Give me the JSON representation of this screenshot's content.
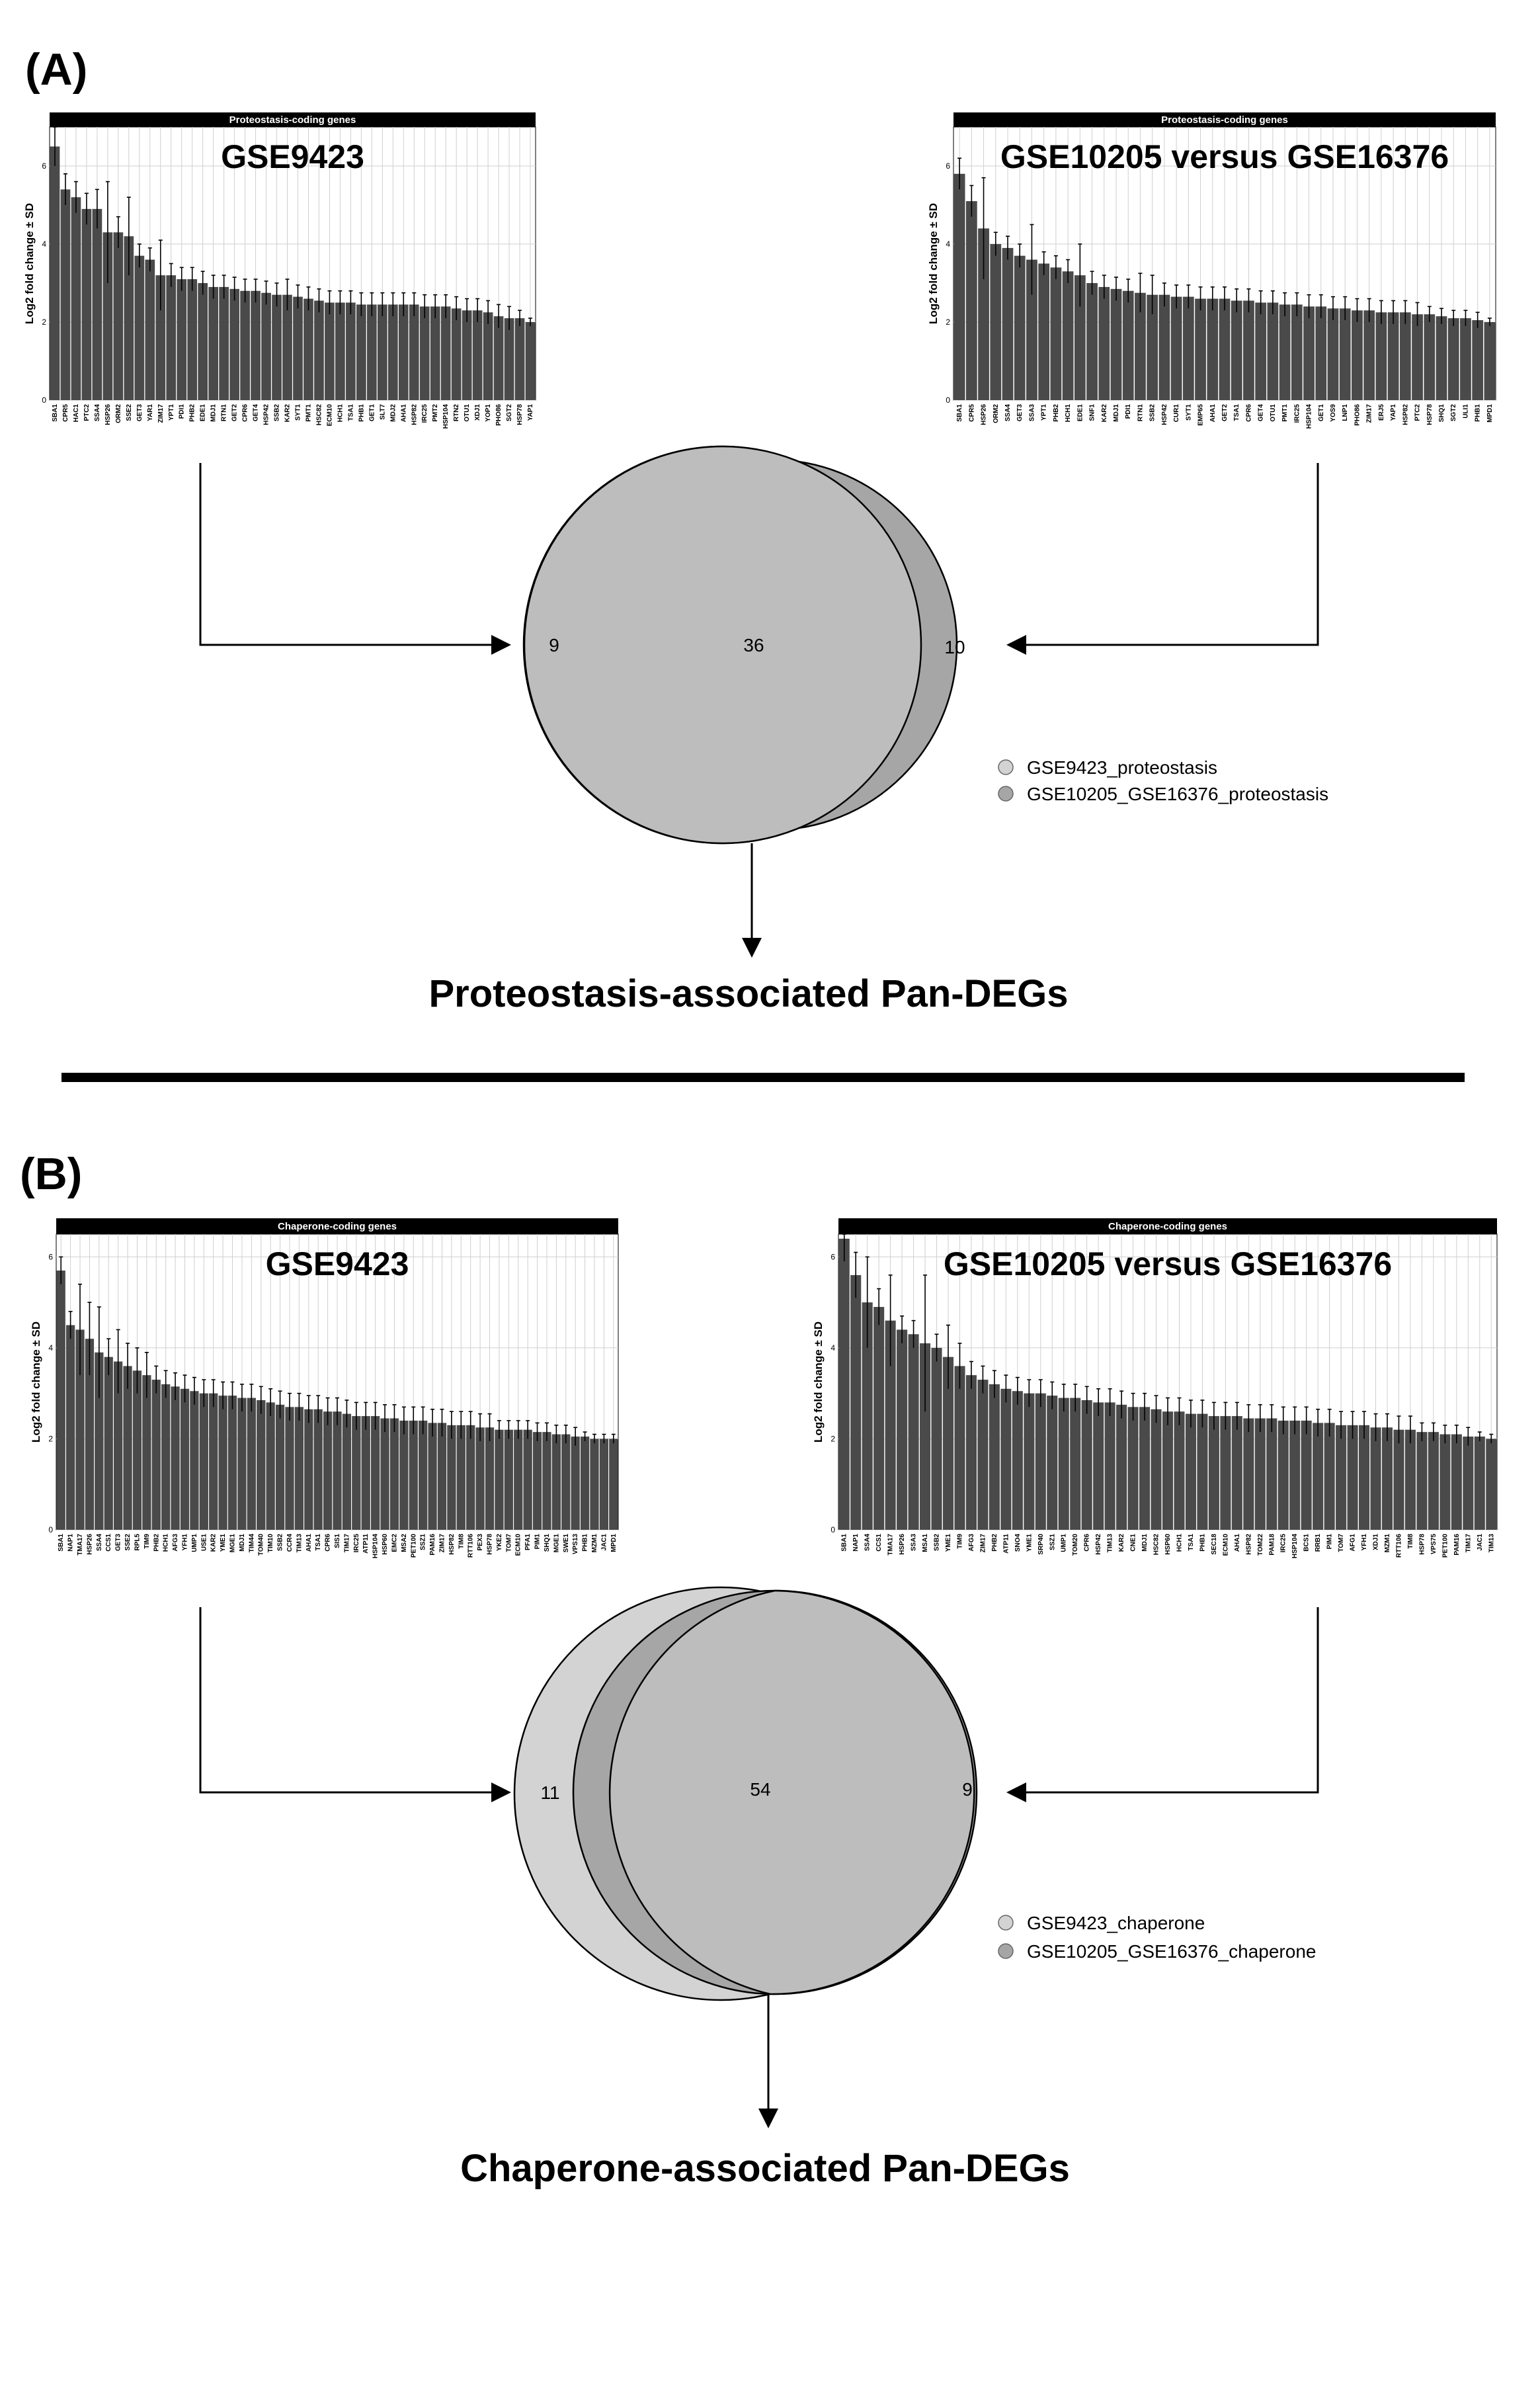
{
  "colors": {
    "bar": "#4a4a4a",
    "strip": "#000000",
    "grid": "#cfcfcf",
    "venn_left": "#d3d3d3",
    "venn_right": "#a6a6a6",
    "venn_overlap": "#bdbdbd"
  },
  "panels": [
    {
      "label": "(A)",
      "caption": "Proteostasis-associated Pan-DEGs",
      "venn": {
        "left_only": "9",
        "both": "36",
        "right_only": "10"
      },
      "legend": [
        "GSE9423_proteostasis",
        "GSE10205_GSE16376_proteostasis"
      ]
    },
    {
      "label": "(B)",
      "caption": "Chaperone-associated Pan-DEGs",
      "venn": {
        "left_only": "11",
        "both": "54",
        "right_only": "9"
      },
      "legend": [
        "GSE9423_chaperone",
        "GSE10205_GSE16376_chaperone"
      ]
    }
  ],
  "chart_data": [
    {
      "type": "bar",
      "strip": "Proteostasis-coding genes",
      "title": "GSE9423",
      "ylabel": "Log2 fold change ± SD",
      "ylim": [
        0,
        7
      ],
      "yticks": [
        "0",
        "2",
        "4",
        "6"
      ],
      "grid": true,
      "categories": [
        "SBA1",
        "CPR5",
        "HAC1",
        "PTC2",
        "SSA4",
        "HSP26",
        "ORM2",
        "SSE2",
        "GET3",
        "YAR1",
        "ZIM17",
        "YPT1",
        "PDI1",
        "PHB2",
        "EDE1",
        "MDJ1",
        "RTN1",
        "GET2",
        "CPR6",
        "GET4",
        "HSP42",
        "SSB2",
        "KAR2",
        "SYT1",
        "PMT1",
        "HSC82",
        "ECM10",
        "HCH1",
        "TSA1",
        "PHB1",
        "GET1",
        "SLT7",
        "MDJ2",
        "AHA1",
        "HSP82",
        "IRC25",
        "PMT2",
        "HSP104",
        "RTN2",
        "OTU1",
        "XDJ1",
        "YOP1",
        "PHO86",
        "SGT2",
        "HSP78",
        "YAP1"
      ],
      "values": [
        6.5,
        5.4,
        5.2,
        4.9,
        4.9,
        4.3,
        4.3,
        4.2,
        3.7,
        3.6,
        3.2,
        3.2,
        3.1,
        3.1,
        3.0,
        2.9,
        2.9,
        2.85,
        2.8,
        2.8,
        2.75,
        2.7,
        2.7,
        2.65,
        2.6,
        2.55,
        2.5,
        2.5,
        2.5,
        2.45,
        2.45,
        2.45,
        2.45,
        2.45,
        2.45,
        2.4,
        2.4,
        2.4,
        2.35,
        2.3,
        2.3,
        2.25,
        2.15,
        2.1,
        2.1,
        2.0
      ],
      "errors": [
        0.5,
        0.4,
        0.4,
        0.4,
        0.5,
        1.3,
        0.4,
        1.0,
        0.3,
        0.3,
        0.9,
        0.3,
        0.3,
        0.3,
        0.3,
        0.3,
        0.3,
        0.3,
        0.3,
        0.3,
        0.3,
        0.3,
        0.4,
        0.3,
        0.3,
        0.3,
        0.3,
        0.3,
        0.3,
        0.3,
        0.3,
        0.3,
        0.3,
        0.3,
        0.3,
        0.3,
        0.3,
        0.3,
        0.3,
        0.3,
        0.3,
        0.3,
        0.3,
        0.3,
        0.2,
        0.1
      ]
    },
    {
      "type": "bar",
      "strip": "Proteostasis-coding genes",
      "title": "GSE10205 versus GSE16376",
      "ylabel": "Log2 fold change ± SD",
      "ylim": [
        0,
        7
      ],
      "yticks": [
        "0",
        "2",
        "4",
        "6"
      ],
      "grid": true,
      "categories": [
        "SBA1",
        "CPR5",
        "HSP26",
        "ORM2",
        "SSA4",
        "GET3",
        "SSA3",
        "YPT1",
        "PHB2",
        "HCH1",
        "EDE1",
        "SNF1",
        "KAR2",
        "MDJ1",
        "PDI1",
        "RTN1",
        "SSB2",
        "HSP42",
        "CUR1",
        "SYT1",
        "EMP65",
        "AHA1",
        "GET2",
        "TSA1",
        "CPR6",
        "GET4",
        "OTU1",
        "PMT1",
        "IRC25",
        "HSP104",
        "GET1",
        "YOS9",
        "LNP1",
        "PHO86",
        "ZIM17",
        "ERJ5",
        "YAP1",
        "HSP82",
        "PTC2",
        "HSP78",
        "SHQ1",
        "SGT2",
        "ULI1",
        "PHB1",
        "MPD1"
      ],
      "values": [
        5.8,
        5.1,
        4.4,
        4.0,
        3.9,
        3.7,
        3.6,
        3.5,
        3.4,
        3.3,
        3.2,
        3.0,
        2.9,
        2.85,
        2.8,
        2.75,
        2.7,
        2.7,
        2.65,
        2.65,
        2.6,
        2.6,
        2.6,
        2.55,
        2.55,
        2.5,
        2.5,
        2.45,
        2.45,
        2.4,
        2.4,
        2.35,
        2.35,
        2.3,
        2.3,
        2.25,
        2.25,
        2.25,
        2.2,
        2.2,
        2.15,
        2.1,
        2.1,
        2.05,
        2.0
      ],
      "errors": [
        0.4,
        0.4,
        1.3,
        0.3,
        0.3,
        0.3,
        0.9,
        0.3,
        0.3,
        0.3,
        0.8,
        0.3,
        0.3,
        0.3,
        0.3,
        0.5,
        0.5,
        0.3,
        0.3,
        0.3,
        0.3,
        0.3,
        0.3,
        0.3,
        0.3,
        0.3,
        0.3,
        0.3,
        0.3,
        0.3,
        0.3,
        0.3,
        0.3,
        0.3,
        0.3,
        0.3,
        0.3,
        0.3,
        0.3,
        0.2,
        0.2,
        0.2,
        0.2,
        0.2,
        0.1
      ]
    },
    {
      "type": "bar",
      "strip": "Chaperone-coding genes",
      "title": "GSE9423",
      "ylabel": "Log2 fold change ± SD",
      "ylim": [
        0,
        6.5
      ],
      "yticks": [
        "0",
        "2",
        "4",
        "6"
      ],
      "grid": true,
      "categories": [
        "SBA1",
        "NAP1",
        "TMA17",
        "HSP26",
        "SSA4",
        "CCS1",
        "GET3",
        "SSE2",
        "RPL5",
        "TIM9",
        "PHB2",
        "HCH1",
        "AFG3",
        "YFH1",
        "UMP1",
        "USE1",
        "KAR2",
        "YME1",
        "MGE1",
        "MDJ1",
        "TIM44",
        "TOM40",
        "TIM10",
        "SSB2",
        "CCR4",
        "TIM13",
        "AHA1",
        "TSA1",
        "CPR6",
        "SIS1",
        "TIM17",
        "IRC25",
        "ATP11",
        "HSP104",
        "HSP60",
        "EMC2",
        "MSA2",
        "PET100",
        "SSZ1",
        "PAM16",
        "ZIM17",
        "HSP82",
        "TIM8",
        "RTT106",
        "PEX3",
        "HSP78",
        "YKE2",
        "TOM7",
        "ECM10",
        "PFA1",
        "PIM1",
        "SHQ1",
        "MGE1",
        "SWE1",
        "VPS13",
        "PHB1",
        "MZM1",
        "JAC1",
        "MPD1"
      ],
      "values": [
        5.7,
        4.5,
        4.4,
        4.2,
        3.9,
        3.8,
        3.7,
        3.6,
        3.5,
        3.4,
        3.3,
        3.2,
        3.15,
        3.1,
        3.05,
        3.0,
        3.0,
        2.95,
        2.95,
        2.9,
        2.9,
        2.85,
        2.8,
        2.75,
        2.7,
        2.7,
        2.65,
        2.65,
        2.6,
        2.6,
        2.55,
        2.5,
        2.5,
        2.5,
        2.45,
        2.45,
        2.4,
        2.4,
        2.4,
        2.35,
        2.35,
        2.3,
        2.3,
        2.3,
        2.25,
        2.25,
        2.2,
        2.2,
        2.2,
        2.2,
        2.15,
        2.15,
        2.1,
        2.1,
        2.05,
        2.05,
        2.0,
        2.0,
        2.0
      ],
      "errors": [
        0.3,
        0.3,
        1.0,
        0.8,
        1.0,
        0.4,
        0.7,
        0.5,
        0.5,
        0.5,
        0.3,
        0.3,
        0.3,
        0.3,
        0.3,
        0.3,
        0.3,
        0.3,
        0.3,
        0.3,
        0.3,
        0.3,
        0.3,
        0.3,
        0.3,
        0.3,
        0.3,
        0.3,
        0.3,
        0.3,
        0.3,
        0.3,
        0.3,
        0.3,
        0.3,
        0.3,
        0.3,
        0.3,
        0.3,
        0.3,
        0.3,
        0.3,
        0.3,
        0.3,
        0.3,
        0.3,
        0.2,
        0.2,
        0.2,
        0.2,
        0.2,
        0.2,
        0.2,
        0.2,
        0.2,
        0.1,
        0.1,
        0.1,
        0.1
      ]
    },
    {
      "type": "bar",
      "strip": "Chaperone-coding genes",
      "title": "GSE10205 versus GSE16376",
      "ylabel": "Log2 fold change ± SD",
      "ylim": [
        0,
        6.5
      ],
      "yticks": [
        "0",
        "2",
        "4",
        "6"
      ],
      "grid": true,
      "categories": [
        "SBA1",
        "NAP1",
        "SSA4",
        "CCS1",
        "TMA17",
        "HSP26",
        "SSA3",
        "MSA1",
        "SSB2",
        "YME1",
        "TIM9",
        "AFG3",
        "ZIM17",
        "PHB2",
        "ATP11",
        "SNO4",
        "YME1",
        "SRP40",
        "SSZ1",
        "UMP1",
        "TOM20",
        "CPR6",
        "HSP42",
        "TIM13",
        "KAR2",
        "CNE1",
        "MDJ1",
        "HSC82",
        "HSP60",
        "HCH1",
        "TSA1",
        "PHB1",
        "SEC18",
        "ECM10",
        "AHA1",
        "HSP82",
        "TOM22",
        "PAM18",
        "IRC25",
        "HSP104",
        "BCS1",
        "RRB1",
        "PIM1",
        "TOM7",
        "AFG1",
        "YFH1",
        "XDJ1",
        "MZM1",
        "RTT106",
        "TIM8",
        "HSP78",
        "VPS75",
        "PET100",
        "PAM16",
        "TIM17",
        "JAC1",
        "TIM13"
      ],
      "values": [
        6.4,
        5.6,
        5.0,
        4.9,
        4.6,
        4.4,
        4.3,
        4.1,
        4.0,
        3.8,
        3.6,
        3.4,
        3.3,
        3.2,
        3.1,
        3.05,
        3.0,
        3.0,
        2.95,
        2.9,
        2.9,
        2.85,
        2.8,
        2.8,
        2.75,
        2.7,
        2.7,
        2.65,
        2.6,
        2.6,
        2.55,
        2.55,
        2.5,
        2.5,
        2.5,
        2.45,
        2.45,
        2.45,
        2.4,
        2.4,
        2.4,
        2.35,
        2.35,
        2.3,
        2.3,
        2.3,
        2.25,
        2.25,
        2.2,
        2.2,
        2.15,
        2.15,
        2.1,
        2.1,
        2.05,
        2.05,
        2.0
      ],
      "errors": [
        0.5,
        0.5,
        1.0,
        0.4,
        1.0,
        0.3,
        0.3,
        1.5,
        0.3,
        0.7,
        0.5,
        0.3,
        0.3,
        0.3,
        0.3,
        0.3,
        0.3,
        0.3,
        0.3,
        0.3,
        0.3,
        0.3,
        0.3,
        0.3,
        0.3,
        0.3,
        0.3,
        0.3,
        0.3,
        0.3,
        0.3,
        0.3,
        0.3,
        0.3,
        0.3,
        0.3,
        0.3,
        0.3,
        0.3,
        0.3,
        0.3,
        0.3,
        0.3,
        0.3,
        0.3,
        0.3,
        0.3,
        0.3,
        0.3,
        0.3,
        0.2,
        0.2,
        0.2,
        0.2,
        0.2,
        0.1,
        0.1
      ]
    }
  ]
}
